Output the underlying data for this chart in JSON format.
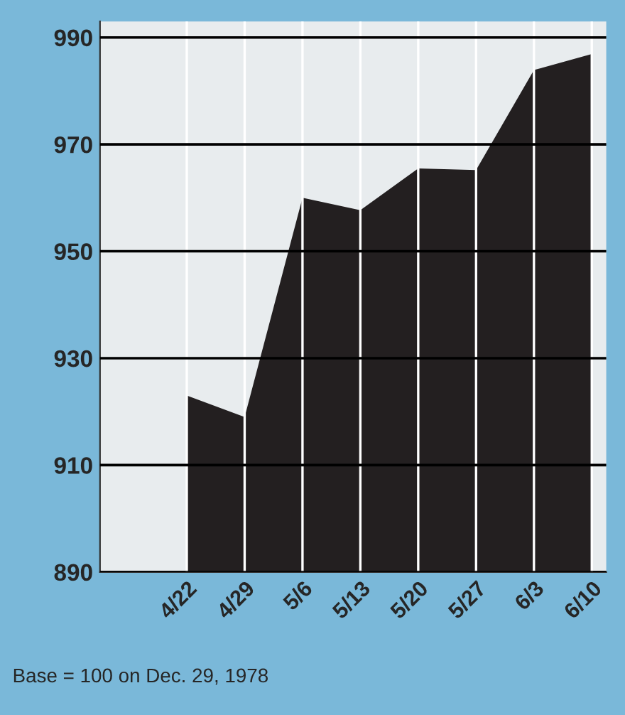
{
  "chart_data": {
    "type": "area",
    "categories": [
      "4/22",
      "4/29",
      "5/6",
      "5/13",
      "5/20",
      "5/27",
      "6/3",
      "6/10"
    ],
    "series": [
      {
        "color": "#231f20",
        "values": [
          923,
          919,
          960,
          957.7,
          965.5,
          965.2,
          983.9,
          986.9
        ]
      }
    ],
    "ylim": [
      890,
      993
    ],
    "yticks": [
      890,
      910,
      930,
      950,
      970,
      990
    ],
    "grid": true,
    "annotations": [
      "Base = 100 on Dec. 29, 1978"
    ]
  }
}
